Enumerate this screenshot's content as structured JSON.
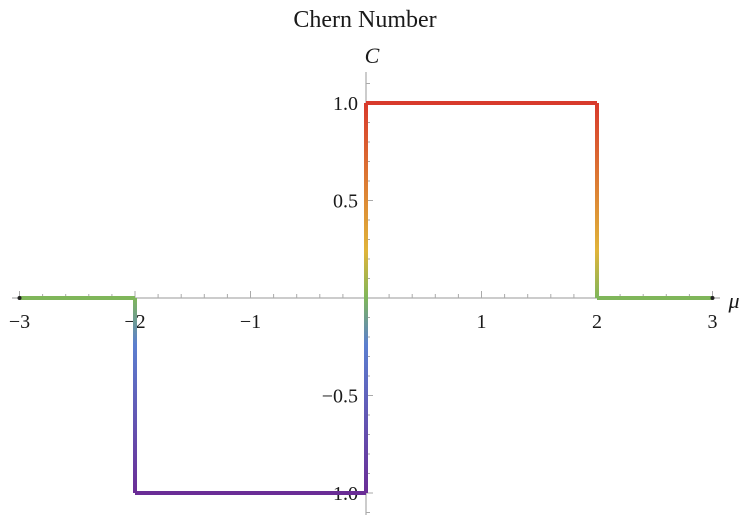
{
  "chart_data": {
    "type": "line",
    "title": "Chern Number",
    "xlabel": "μ",
    "ylabel": "C",
    "xlim": [
      -3,
      3
    ],
    "ylim": [
      -1.1,
      1.1
    ],
    "grid": false,
    "x_ticks": [
      {
        "value": -3,
        "label": "−3"
      },
      {
        "value": -2,
        "label": "−2"
      },
      {
        "value": -1,
        "label": "−1"
      },
      {
        "value": 1,
        "label": "1"
      },
      {
        "value": 2,
        "label": "2"
      },
      {
        "value": 3,
        "label": "3"
      }
    ],
    "y_ticks": [
      {
        "value": -1.0,
        "label": "−1.0"
      },
      {
        "value": -0.5,
        "label": "−0.5"
      },
      {
        "value": 0.5,
        "label": "0.5"
      },
      {
        "value": 1.0,
        "label": "1.0"
      }
    ],
    "series": [
      {
        "x": [
          -3,
          -2,
          -2,
          0,
          0,
          2,
          2,
          3
        ],
        "y": [
          0,
          0,
          -1,
          -1,
          1,
          1,
          0,
          0
        ]
      }
    ],
    "colors": {
      "zero": "#7fb65a",
      "positive": "#d83a2c",
      "mid_positive": "#e0b43a",
      "mid_negative": "#5b7fd0",
      "negative": "#6a2d96",
      "axis": "#999999",
      "tick": "#aaaaaa"
    }
  }
}
